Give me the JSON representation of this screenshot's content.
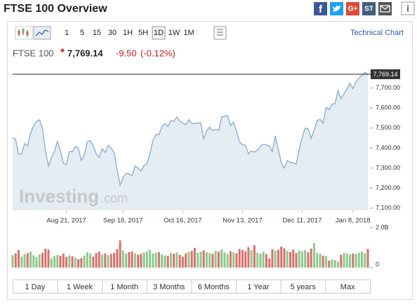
{
  "header": {
    "title": "FTSE 100 Overview",
    "share": {
      "facebook": "f",
      "google": "G+",
      "stocktwits": "ST"
    },
    "info": "i",
    "technical_link": "Technical Chart"
  },
  "toolbar": {
    "intervals": [
      "1",
      "5",
      "15",
      "30",
      "1H",
      "5H",
      "1D",
      "1W",
      "1M"
    ],
    "active": "1D"
  },
  "quote": {
    "name": "FTSE 100",
    "price": "7,769.14",
    "change": "-9.50",
    "change_pct": "(-0.12%)"
  },
  "watermark": {
    "brand": "Investing",
    "domain": ".com"
  },
  "ranges": [
    "1 Day",
    "1 Week",
    "1 Month",
    "3 Months",
    "6 Months",
    "1 Year",
    "5 years",
    "Max"
  ],
  "chart_data": [
    {
      "type": "area",
      "color": "#7ea7cc",
      "fill": "#e4ecf4",
      "x": [
        "2017-07-26",
        "2017-07-27",
        "2017-07-28",
        "2017-07-31",
        "2017-08-01",
        "2017-08-02",
        "2017-08-03",
        "2017-08-04",
        "2017-08-07",
        "2017-08-08",
        "2017-08-09",
        "2017-08-10",
        "2017-08-11",
        "2017-08-14",
        "2017-08-15",
        "2017-08-16",
        "2017-08-17",
        "2017-08-18",
        "2017-08-21",
        "2017-08-22",
        "2017-08-23",
        "2017-08-24",
        "2017-08-25",
        "2017-08-29",
        "2017-08-30",
        "2017-08-31",
        "2017-09-01",
        "2017-09-04",
        "2017-09-05",
        "2017-09-06",
        "2017-09-07",
        "2017-09-08",
        "2017-09-11",
        "2017-09-12",
        "2017-09-13",
        "2017-09-14",
        "2017-09-15",
        "2017-09-18",
        "2017-09-19",
        "2017-09-20",
        "2017-09-21",
        "2017-09-22",
        "2017-09-25",
        "2017-09-26",
        "2017-09-27",
        "2017-09-28",
        "2017-09-29",
        "2017-10-02",
        "2017-10-03",
        "2017-10-04",
        "2017-10-05",
        "2017-10-06",
        "2017-10-09",
        "2017-10-10",
        "2017-10-11",
        "2017-10-12",
        "2017-10-13",
        "2017-10-16",
        "2017-10-17",
        "2017-10-18",
        "2017-10-19",
        "2017-10-20",
        "2017-10-23",
        "2017-10-24",
        "2017-10-25",
        "2017-10-26",
        "2017-10-27",
        "2017-10-30",
        "2017-10-31",
        "2017-11-01",
        "2017-11-02",
        "2017-11-03",
        "2017-11-06",
        "2017-11-07",
        "2017-11-08",
        "2017-11-09",
        "2017-11-10",
        "2017-11-13",
        "2017-11-14",
        "2017-11-15",
        "2017-11-16",
        "2017-11-17",
        "2017-11-20",
        "2017-11-21",
        "2017-11-22",
        "2017-11-23",
        "2017-11-24",
        "2017-11-27",
        "2017-11-28",
        "2017-11-29",
        "2017-11-30",
        "2017-12-01",
        "2017-12-04",
        "2017-12-05",
        "2017-12-06",
        "2017-12-07",
        "2017-12-08",
        "2017-12-11",
        "2017-12-12",
        "2017-12-13",
        "2017-12-14",
        "2017-12-15",
        "2017-12-18",
        "2017-12-19",
        "2017-12-20",
        "2017-12-21",
        "2017-12-22",
        "2017-12-27",
        "2017-12-28",
        "2017-12-29",
        "2018-01-02",
        "2018-01-03",
        "2018-01-04",
        "2018-01-05",
        "2018-01-08",
        "2018-01-09",
        "2018-01-10",
        "2018-01-11",
        "2018-01-12",
        "2018-01-15"
      ],
      "values": [
        7452,
        7443,
        7368,
        7372,
        7423,
        7411,
        7475,
        7511,
        7532,
        7542,
        7498,
        7389,
        7310,
        7354,
        7383,
        7433,
        7387,
        7324,
        7318,
        7383,
        7382,
        7407,
        7401,
        7338,
        7366,
        7431,
        7438,
        7411,
        7372,
        7354,
        7397,
        7378,
        7413,
        7400,
        7379,
        7295,
        7215,
        7253,
        7275,
        7271,
        7263,
        7310,
        7301,
        7285,
        7313,
        7322,
        7373,
        7439,
        7468,
        7467,
        7507,
        7522,
        7508,
        7538,
        7533,
        7556,
        7535,
        7526,
        7516,
        7542,
        7524,
        7523,
        7524,
        7527,
        7447,
        7486,
        7505,
        7487,
        7493,
        7488,
        7555,
        7560,
        7562,
        7513,
        7530,
        7484,
        7433,
        7416,
        7415,
        7372,
        7386,
        7380,
        7390,
        7411,
        7419,
        7417,
        7410,
        7383,
        7461,
        7393,
        7327,
        7300,
        7338,
        7328,
        7327,
        7320,
        7394,
        7453,
        7500,
        7496,
        7448,
        7490,
        7537,
        7544,
        7525,
        7603,
        7592,
        7620,
        7622,
        7688,
        7648,
        7671,
        7695,
        7724,
        7697,
        7731,
        7748,
        7763,
        7779,
        7769.14
      ],
      "last_label": "7,769.14",
      "ylim": [
        7090,
        7790
      ],
      "yticks": [
        {
          "value": 7100,
          "label": "7,100.00"
        },
        {
          "value": 7200,
          "label": "7,200.00"
        },
        {
          "value": 7300,
          "label": "7,300.00"
        },
        {
          "value": 7400,
          "label": "7,400.00"
        },
        {
          "value": 7500,
          "label": "7,500.00"
        },
        {
          "value": 7600,
          "label": "7,600.00"
        },
        {
          "value": 7700,
          "label": "7,700.00"
        }
      ],
      "xticks": [
        {
          "value": "2017-08-21",
          "label": "Aug 21, 2017"
        },
        {
          "value": "2017-09-18",
          "label": "Sep 18, 2017"
        },
        {
          "value": "2017-10-16",
          "label": "Oct 16, 2017"
        },
        {
          "value": "2017-11-13",
          "label": "Nov 13, 2017"
        },
        {
          "value": "2017-12-11",
          "label": "Dec 11, 2017"
        },
        {
          "value": "2018-01-08",
          "label": "Jan 8, 2018"
        }
      ],
      "grid": false
    },
    {
      "type": "bar",
      "up_color": "#8cc98c",
      "down_color": "#d9706d",
      "values": [
        0.62,
        0.71,
        0.88,
        0.55,
        0.68,
        0.72,
        0.8,
        0.61,
        0.52,
        0.66,
        0.74,
        0.95,
        0.9,
        0.45,
        0.58,
        0.63,
        0.59,
        0.7,
        0.54,
        0.61,
        0.57,
        0.5,
        0.42,
        0.48,
        0.6,
        0.77,
        0.69,
        0.55,
        0.73,
        0.8,
        0.66,
        0.71,
        0.62,
        0.68,
        0.74,
        0.92,
        1.36,
        0.85,
        0.7,
        0.78,
        0.81,
        0.72,
        0.64,
        0.69,
        0.75,
        0.82,
        0.88,
        0.7,
        0.74,
        0.78,
        0.66,
        0.61,
        0.58,
        0.72,
        0.69,
        0.76,
        0.63,
        0.55,
        0.71,
        0.79,
        0.83,
        0.98,
        0.74,
        0.8,
        0.86,
        0.77,
        0.73,
        0.69,
        0.84,
        0.79,
        0.9,
        0.75,
        0.68,
        0.82,
        0.77,
        0.71,
        0.93,
        0.88,
        0.81,
        1.02,
        0.87,
        1.12,
        0.74,
        0.7,
        0.79,
        0.68,
        0.46,
        0.92,
        0.85,
        0.89,
        1.05,
        0.97,
        0.84,
        0.78,
        0.9,
        0.73,
        0.86,
        0.81,
        0.88,
        0.76,
        0.95,
        1.22,
        0.72,
        0.69,
        0.6,
        0.58,
        0.35,
        0.4,
        0.38,
        0.3,
        0.64,
        0.73,
        0.71,
        0.66,
        0.7,
        0.68,
        0.74,
        0.8,
        0.72,
        0.93
      ],
      "ylim": [
        0,
        2.0
      ],
      "yticks": [
        {
          "value": 2.0,
          "label": "2.0B"
        },
        0
      ]
    }
  ]
}
